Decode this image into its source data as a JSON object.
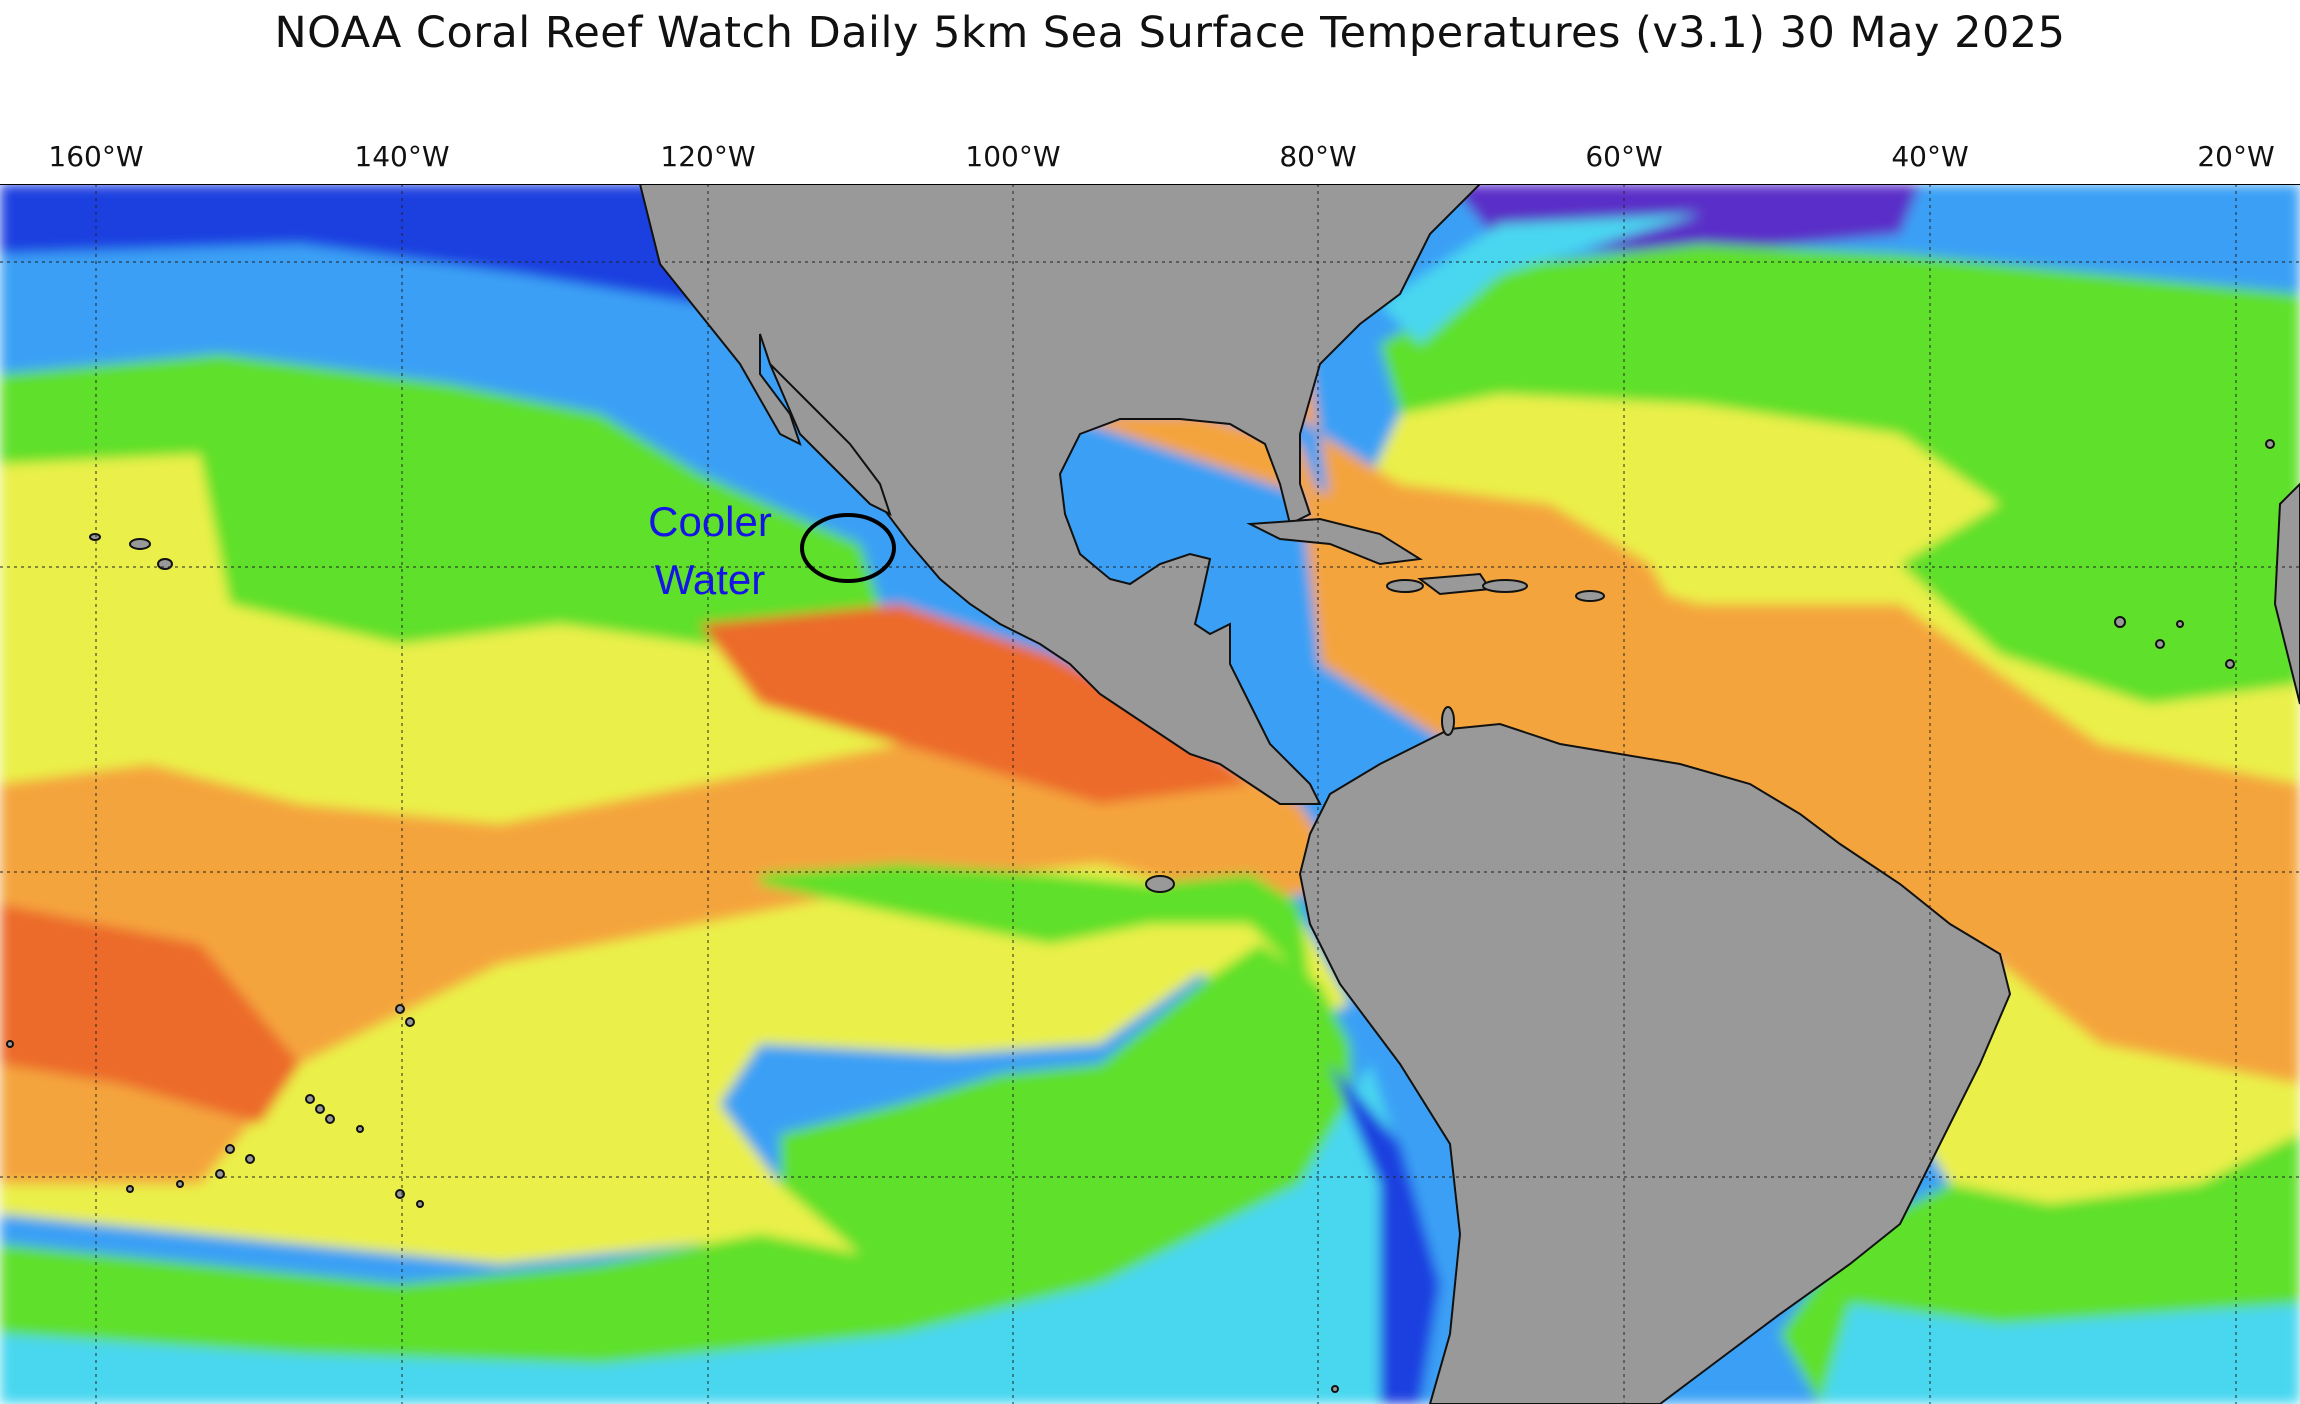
{
  "title": "NOAA Coral Reef Watch Daily 5km Sea Surface Temperatures  (v3.1)   30 May 2025",
  "longitude_labels": [
    "160°W",
    "140°W",
    "120°W",
    "100°W",
    "80°W",
    "60°W",
    "40°W",
    "20°W"
  ],
  "annotation": {
    "line1": "Cooler",
    "line2": "Water",
    "color": "#1414e6"
  },
  "colors": {
    "land": "#999999",
    "very_cold": "#5a2fc8",
    "cold": "#1e3fe0",
    "cool": "#3aa0f5",
    "cyan": "#4ad7f0",
    "mild": "#5fe02a",
    "green_dark": "#3fb23a",
    "warm": "#eaf04a",
    "hot": "#f4a43c",
    "hottest": "#ec6a2c"
  }
}
